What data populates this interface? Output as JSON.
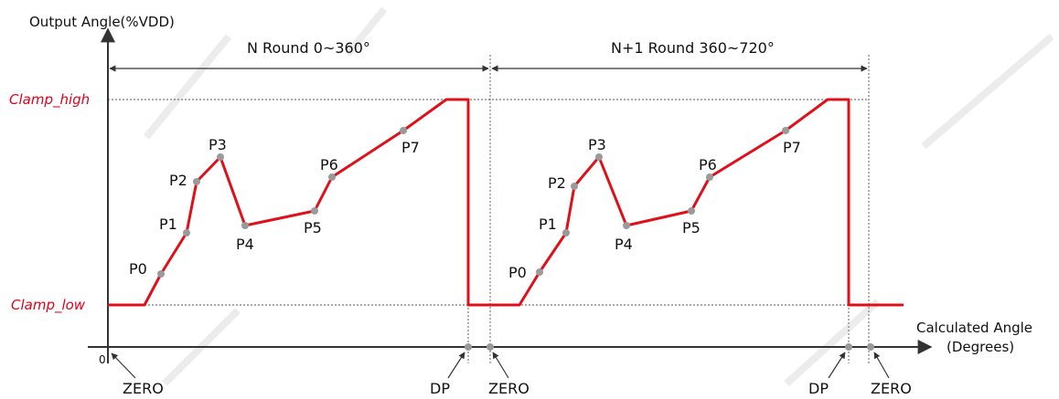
{
  "y_axis_label": "Output Angle(%VDD)",
  "x_axis_label_line1": "Calculated Angle",
  "x_axis_label_line2": "(Degrees)",
  "origin_label": "0",
  "round1_label": "N Round 0~360°",
  "round2_label": "N+1 Round 360~720°",
  "clamp_high_label": "Clamp_high",
  "clamp_low_label": "Clamp_low",
  "marker_labels": {
    "zero1": "ZERO",
    "dp1": "DP",
    "zero2": "ZERO",
    "dp2": "DP",
    "zero3": "ZERO"
  },
  "points_round1": [
    "P0",
    "P1",
    "P2",
    "P3",
    "P4",
    "P5",
    "P6",
    "P7"
  ],
  "points_round2": [
    "P0",
    "P1",
    "P2",
    "P3",
    "P4",
    "P5",
    "P6",
    "P7"
  ],
  "colors": {
    "curve": "#e0101a",
    "clamp_text": "#e0001a",
    "points": "#9a9a9a",
    "axis": "#333333"
  }
}
